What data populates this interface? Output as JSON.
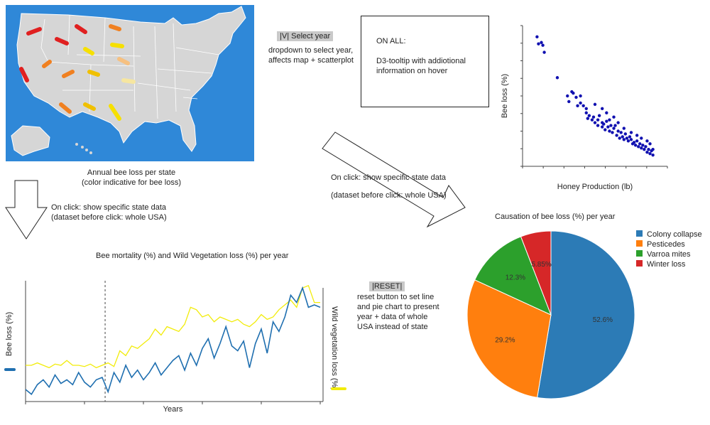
{
  "map": {
    "caption_line1": "Annual bee loss per state",
    "caption_line2": "(color indicative for bee loss)",
    "background": "#2f88d8",
    "land": "#d6d6d6"
  },
  "select_year": {
    "button": "|V| Select year",
    "desc_line1": "dropdown to select year,",
    "desc_line2": "affects map + scatterplot"
  },
  "on_all": {
    "title": "ON ALL:",
    "line1": "D3-tooltip with addiotional",
    "line2": "information on hover"
  },
  "arrow_left": {
    "line1": "On click: show specific state data",
    "line2": "(dataset before click: whole USA)"
  },
  "arrow_right": {
    "line1": "On click: show specific state data",
    "line2": "(dataset before click: whole USA)"
  },
  "reset": {
    "button": "|RESET|",
    "line1": "reset button to set line",
    "line2": "and pie chart to present",
    "line3": "year + data of whole",
    "line4": "USA instead of state"
  },
  "colors": {
    "line_bee": "#1f6fb0",
    "line_veg": "#f2ec0a",
    "scatter": "#1010b0",
    "colony": "#2c7bb6",
    "pesticides": "#ff7f0e",
    "varroa": "#2ca02c",
    "winter": "#d62728"
  },
  "chart_data": [
    {
      "type": "scatter",
      "title": "",
      "xlabel": "Honey Production (lb)",
      "ylabel": "Bee loss (%)",
      "xlim": [
        0,
        100
      ],
      "ylim": [
        0,
        100
      ],
      "points": [
        [
          10,
          92
        ],
        [
          11,
          87
        ],
        [
          13,
          88
        ],
        [
          14,
          86
        ],
        [
          15,
          81
        ],
        [
          24,
          63
        ],
        [
          31,
          50
        ],
        [
          32,
          46
        ],
        [
          34,
          53
        ],
        [
          35,
          52
        ],
        [
          37,
          49
        ],
        [
          38,
          43
        ],
        [
          40,
          50
        ],
        [
          40,
          45
        ],
        [
          42,
          43
        ],
        [
          44,
          38
        ],
        [
          44,
          41
        ],
        [
          45,
          34
        ],
        [
          46,
          36
        ],
        [
          48,
          33
        ],
        [
          49,
          35
        ],
        [
          50,
          31
        ],
        [
          52,
          29
        ],
        [
          52,
          33
        ],
        [
          53,
          36
        ],
        [
          55,
          31
        ],
        [
          55,
          28
        ],
        [
          56,
          30
        ],
        [
          57,
          26
        ],
        [
          58,
          32
        ],
        [
          59,
          28
        ],
        [
          60,
          25
        ],
        [
          60,
          33
        ],
        [
          61,
          29
        ],
        [
          62,
          24
        ],
        [
          63,
          27
        ],
        [
          64,
          29
        ],
        [
          65,
          22
        ],
        [
          66,
          25
        ],
        [
          67,
          20
        ],
        [
          68,
          24
        ],
        [
          69,
          21
        ],
        [
          70,
          19
        ],
        [
          71,
          23
        ],
        [
          72,
          20
        ],
        [
          73,
          18
        ],
        [
          74,
          21
        ],
        [
          75,
          19
        ],
        [
          76,
          16
        ],
        [
          77,
          17
        ],
        [
          78,
          15
        ],
        [
          79,
          18
        ],
        [
          80,
          14
        ],
        [
          81,
          16
        ],
        [
          82,
          13
        ],
        [
          83,
          15
        ],
        [
          84,
          12
        ],
        [
          85,
          14
        ],
        [
          86,
          10
        ],
        [
          87,
          12
        ],
        [
          88,
          9
        ],
        [
          89,
          11
        ],
        [
          90,
          8
        ],
        [
          86,
          18
        ],
        [
          88,
          16
        ],
        [
          90,
          12
        ],
        [
          82,
          20
        ],
        [
          79,
          22
        ],
        [
          75,
          24
        ],
        [
          70,
          27
        ],
        [
          66,
          31
        ],
        [
          63,
          35
        ],
        [
          58,
          38
        ],
        [
          55,
          41
        ],
        [
          50,
          44
        ]
      ]
    },
    {
      "type": "line",
      "title": "Bee mortality (%) and Wild Vegetation loss (%) per year",
      "xlabel": "Years",
      "ylabel": "Bee loss (%)",
      "y2label": "Wild vegetation loss (%)",
      "xlim": [
        0,
        100
      ],
      "ylim": [
        0,
        100
      ],
      "x": [
        0,
        2,
        4,
        6,
        8,
        10,
        12,
        14,
        16,
        18,
        20,
        22,
        24,
        26,
        28,
        30,
        32,
        34,
        36,
        38,
        40,
        42,
        44,
        46,
        48,
        50,
        52,
        54,
        56,
        58,
        60,
        62,
        64,
        66,
        68,
        70,
        72,
        74,
        76,
        78,
        80,
        82,
        84,
        86,
        88,
        90,
        92,
        94,
        96,
        98,
        100
      ],
      "series": [
        {
          "name": "Bee loss (%)",
          "values": [
            10,
            6,
            14,
            18,
            12,
            22,
            15,
            18,
            14,
            24,
            16,
            12,
            18,
            20,
            8,
            24,
            16,
            30,
            20,
            26,
            18,
            24,
            32,
            22,
            28,
            34,
            38,
            26,
            40,
            30,
            44,
            52,
            36,
            48,
            62,
            46,
            42,
            50,
            28,
            48,
            60,
            40,
            66,
            58,
            70,
            88,
            82,
            94,
            78,
            80,
            78
          ]
        },
        {
          "name": "Wild vegetation loss (%)",
          "values": [
            30,
            30,
            32,
            30,
            28,
            31,
            30,
            34,
            30,
            30,
            29,
            31,
            28,
            30,
            32,
            29,
            42,
            38,
            46,
            44,
            48,
            52,
            60,
            55,
            62,
            60,
            58,
            64,
            78,
            76,
            70,
            72,
            66,
            70,
            68,
            66,
            68,
            64,
            62,
            66,
            72,
            68,
            70,
            76,
            80,
            84,
            78,
            94,
            96,
            82,
            82
          ]
        }
      ]
    },
    {
      "type": "pie",
      "title": "Causation of bee loss (%) per year",
      "labels": [
        "Colony collapse",
        "Pesticedes",
        "Varroa mites",
        "Winter loss"
      ],
      "values": [
        52.6,
        29.2,
        12.3,
        5.85
      ],
      "value_labels": [
        "52.6%",
        "29.2%",
        "12.3%",
        "5.85%"
      ]
    }
  ]
}
